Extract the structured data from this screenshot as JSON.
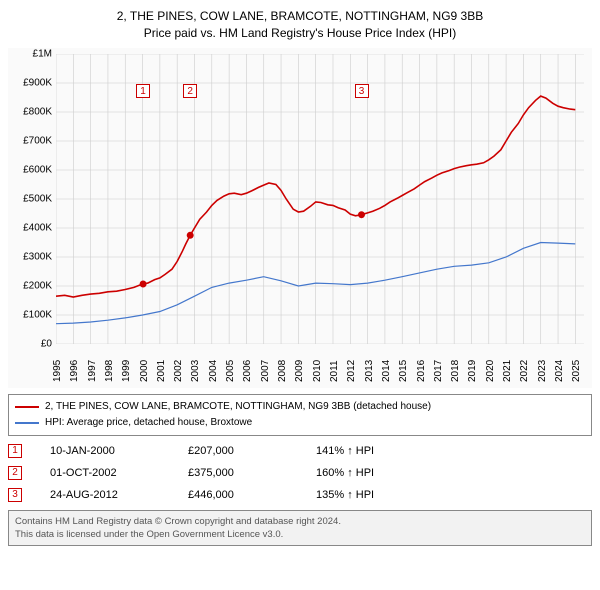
{
  "title": {
    "line1": "2, THE PINES, COW LANE, BRAMCOTE, NOTTINGHAM, NG9 3BB",
    "line2": "Price paid vs. HM Land Registry's House Price Index (HPI)",
    "fontsize": 12
  },
  "chart": {
    "type": "line",
    "background_color": "#fafafa",
    "grid_color": "#cccccc",
    "x_range": [
      1995,
      2025.5
    ],
    "y_range": [
      0,
      1000000
    ],
    "y_ticks": [
      {
        "v": 0,
        "label": "£0"
      },
      {
        "v": 100000,
        "label": "£100K"
      },
      {
        "v": 200000,
        "label": "£200K"
      },
      {
        "v": 300000,
        "label": "£300K"
      },
      {
        "v": 400000,
        "label": "£400K"
      },
      {
        "v": 500000,
        "label": "£500K"
      },
      {
        "v": 600000,
        "label": "£600K"
      },
      {
        "v": 700000,
        "label": "£700K"
      },
      {
        "v": 800000,
        "label": "£800K"
      },
      {
        "v": 900000,
        "label": "£900K"
      },
      {
        "v": 1000000,
        "label": "£1M"
      }
    ],
    "x_ticks": [
      1995,
      1996,
      1997,
      1998,
      1999,
      2000,
      2001,
      2002,
      2003,
      2004,
      2005,
      2006,
      2007,
      2008,
      2009,
      2010,
      2011,
      2012,
      2013,
      2014,
      2015,
      2016,
      2017,
      2018,
      2019,
      2020,
      2021,
      2022,
      2023,
      2024,
      2025
    ],
    "label_fontsize": 10,
    "series": [
      {
        "name": "property",
        "color": "#cc0000",
        "width": 1.6,
        "points": [
          [
            1995,
            165000
          ],
          [
            1995.5,
            168000
          ],
          [
            1996,
            162000
          ],
          [
            1996.5,
            168000
          ],
          [
            1997,
            172000
          ],
          [
            1997.5,
            175000
          ],
          [
            1998,
            180000
          ],
          [
            1998.5,
            182000
          ],
          [
            1999,
            188000
          ],
          [
            1999.5,
            195000
          ],
          [
            2000,
            207000
          ],
          [
            2000.3,
            210000
          ],
          [
            2000.7,
            222000
          ],
          [
            2001,
            228000
          ],
          [
            2001.3,
            240000
          ],
          [
            2001.7,
            258000
          ],
          [
            2002,
            285000
          ],
          [
            2002.3,
            320000
          ],
          [
            2002.5,
            345000
          ],
          [
            2002.75,
            375000
          ],
          [
            2003,
            400000
          ],
          [
            2003.3,
            430000
          ],
          [
            2003.7,
            455000
          ],
          [
            2004,
            478000
          ],
          [
            2004.3,
            495000
          ],
          [
            2004.7,
            510000
          ],
          [
            2005,
            518000
          ],
          [
            2005.3,
            520000
          ],
          [
            2005.7,
            515000
          ],
          [
            2006,
            520000
          ],
          [
            2006.3,
            528000
          ],
          [
            2006.7,
            540000
          ],
          [
            2007,
            548000
          ],
          [
            2007.3,
            555000
          ],
          [
            2007.7,
            550000
          ],
          [
            2008,
            530000
          ],
          [
            2008.3,
            500000
          ],
          [
            2008.7,
            465000
          ],
          [
            2009,
            455000
          ],
          [
            2009.3,
            458000
          ],
          [
            2009.7,
            475000
          ],
          [
            2010,
            490000
          ],
          [
            2010.3,
            488000
          ],
          [
            2010.7,
            480000
          ],
          [
            2011,
            478000
          ],
          [
            2011.3,
            470000
          ],
          [
            2011.7,
            462000
          ],
          [
            2012,
            448000
          ],
          [
            2012.3,
            442000
          ],
          [
            2012.65,
            446000
          ],
          [
            2013,
            452000
          ],
          [
            2013.3,
            458000
          ],
          [
            2013.7,
            468000
          ],
          [
            2014,
            478000
          ],
          [
            2014.3,
            490000
          ],
          [
            2014.7,
            502000
          ],
          [
            2015,
            512000
          ],
          [
            2015.3,
            522000
          ],
          [
            2015.7,
            535000
          ],
          [
            2016,
            548000
          ],
          [
            2016.3,
            560000
          ],
          [
            2016.7,
            572000
          ],
          [
            2017,
            582000
          ],
          [
            2017.3,
            590000
          ],
          [
            2017.7,
            598000
          ],
          [
            2018,
            605000
          ],
          [
            2018.3,
            610000
          ],
          [
            2018.7,
            615000
          ],
          [
            2019,
            618000
          ],
          [
            2019.3,
            620000
          ],
          [
            2019.7,
            625000
          ],
          [
            2020,
            635000
          ],
          [
            2020.3,
            648000
          ],
          [
            2020.7,
            670000
          ],
          [
            2021,
            700000
          ],
          [
            2021.3,
            730000
          ],
          [
            2021.7,
            760000
          ],
          [
            2022,
            790000
          ],
          [
            2022.3,
            815000
          ],
          [
            2022.7,
            840000
          ],
          [
            2023,
            855000
          ],
          [
            2023.3,
            848000
          ],
          [
            2023.7,
            830000
          ],
          [
            2024,
            820000
          ],
          [
            2024.3,
            815000
          ],
          [
            2024.7,
            810000
          ],
          [
            2025,
            808000
          ]
        ]
      },
      {
        "name": "hpi",
        "color": "#4477cc",
        "width": 1.2,
        "points": [
          [
            1995,
            70000
          ],
          [
            1996,
            72000
          ],
          [
            1997,
            76000
          ],
          [
            1998,
            82000
          ],
          [
            1999,
            90000
          ],
          [
            2000,
            100000
          ],
          [
            2001,
            112000
          ],
          [
            2002,
            135000
          ],
          [
            2003,
            165000
          ],
          [
            2004,
            195000
          ],
          [
            2005,
            210000
          ],
          [
            2006,
            220000
          ],
          [
            2007,
            232000
          ],
          [
            2008,
            218000
          ],
          [
            2009,
            200000
          ],
          [
            2010,
            210000
          ],
          [
            2011,
            208000
          ],
          [
            2012,
            205000
          ],
          [
            2013,
            210000
          ],
          [
            2014,
            220000
          ],
          [
            2015,
            232000
          ],
          [
            2016,
            245000
          ],
          [
            2017,
            258000
          ],
          [
            2018,
            268000
          ],
          [
            2019,
            272000
          ],
          [
            2020,
            280000
          ],
          [
            2021,
            300000
          ],
          [
            2022,
            330000
          ],
          [
            2023,
            350000
          ],
          [
            2024,
            348000
          ],
          [
            2025,
            345000
          ]
        ]
      }
    ],
    "sale_markers": [
      {
        "n": "1",
        "x": 2000.03,
        "y": 207000,
        "box_y": 870000
      },
      {
        "n": "2",
        "x": 2002.75,
        "y": 375000,
        "box_y": 870000
      },
      {
        "n": "3",
        "x": 2012.65,
        "y": 446000,
        "box_y": 870000
      }
    ],
    "marker_box_border": "#cc0000",
    "marker_dot_color": "#cc0000",
    "marker_dot_radius": 3.5
  },
  "legend": {
    "items": [
      {
        "color": "#cc0000",
        "label": "2, THE PINES, COW LANE, BRAMCOTE, NOTTINGHAM, NG9 3BB (detached house)"
      },
      {
        "color": "#4477cc",
        "label": "HPI: Average price, detached house, Broxtowe"
      }
    ]
  },
  "sales": [
    {
      "n": "1",
      "date": "10-JAN-2000",
      "price": "£207,000",
      "pct": "141% ↑ HPI"
    },
    {
      "n": "2",
      "date": "01-OCT-2002",
      "price": "£375,000",
      "pct": "160% ↑ HPI"
    },
    {
      "n": "3",
      "date": "24-AUG-2012",
      "price": "£446,000",
      "pct": "135% ↑ HPI"
    }
  ],
  "footer": {
    "line1": "Contains HM Land Registry data © Crown copyright and database right 2024.",
    "line2": "This data is licensed under the Open Government Licence v3.0."
  }
}
